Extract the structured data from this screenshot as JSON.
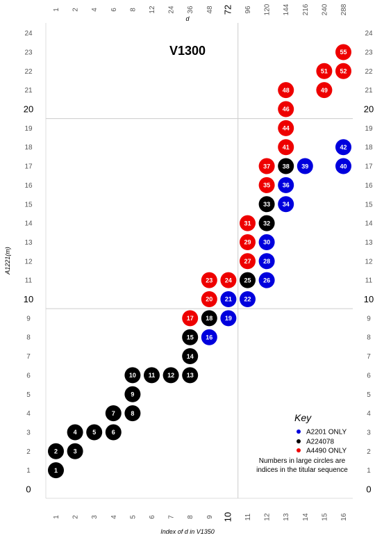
{
  "chart_data": {
    "type": "scatter",
    "title": "V1300",
    "xlabel": "Index of  d  in V1350",
    "ylabel": "A1221(m)",
    "top_axis_label": "d",
    "xlim": [
      0.5,
      16.5
    ],
    "ylim": [
      -0.5,
      24.5
    ],
    "grid": true,
    "x_ticks": [
      "1",
      "2",
      "3",
      "4",
      "5",
      "6",
      "7",
      "8",
      "9",
      "10",
      "11",
      "12",
      "13",
      "14",
      "15",
      "16"
    ],
    "top_ticks": [
      "1",
      "2",
      "4",
      "6",
      "8",
      "12",
      "24",
      "36",
      "48",
      "72",
      "96",
      "120",
      "144",
      "216",
      "240",
      "288"
    ],
    "y_ticks": [
      "0",
      "1",
      "2",
      "3",
      "4",
      "5",
      "6",
      "7",
      "8",
      "9",
      "10",
      "11",
      "12",
      "13",
      "14",
      "15",
      "16",
      "17",
      "18",
      "19",
      "20",
      "21",
      "22",
      "23",
      "24"
    ],
    "major_x_ticks": [
      "10"
    ],
    "major_top_ticks": [
      "72"
    ],
    "major_y_ticks": [
      "0",
      "10",
      "20"
    ],
    "gridlines": {
      "x": [
        10
      ],
      "y": [
        10,
        20
      ]
    },
    "colors": {
      "A2201 ONLY": "#0000dd",
      "A224078": "#000000",
      "A4490 ONLY": "#ee0000"
    },
    "points": [
      {
        "n": 1,
        "x": 1,
        "y": 1,
        "series": "A224078"
      },
      {
        "n": 2,
        "x": 1,
        "y": 2,
        "series": "A224078"
      },
      {
        "n": 3,
        "x": 2,
        "y": 2,
        "series": "A224078"
      },
      {
        "n": 4,
        "x": 2,
        "y": 3,
        "series": "A224078"
      },
      {
        "n": 5,
        "x": 3,
        "y": 3,
        "series": "A224078"
      },
      {
        "n": 6,
        "x": 4,
        "y": 3,
        "series": "A224078"
      },
      {
        "n": 7,
        "x": 4,
        "y": 4,
        "series": "A224078"
      },
      {
        "n": 8,
        "x": 5,
        "y": 4,
        "series": "A224078"
      },
      {
        "n": 9,
        "x": 5,
        "y": 5,
        "series": "A224078"
      },
      {
        "n": 10,
        "x": 5,
        "y": 6,
        "series": "A224078"
      },
      {
        "n": 11,
        "x": 6,
        "y": 6,
        "series": "A224078"
      },
      {
        "n": 12,
        "x": 7,
        "y": 6,
        "series": "A224078"
      },
      {
        "n": 13,
        "x": 8,
        "y": 6,
        "series": "A224078"
      },
      {
        "n": 14,
        "x": 8,
        "y": 7,
        "series": "A224078"
      },
      {
        "n": 15,
        "x": 8,
        "y": 8,
        "series": "A224078"
      },
      {
        "n": 16,
        "x": 9,
        "y": 8,
        "series": "A2201 ONLY"
      },
      {
        "n": 17,
        "x": 8,
        "y": 9,
        "series": "A4490 ONLY"
      },
      {
        "n": 18,
        "x": 9,
        "y": 9,
        "series": "A224078"
      },
      {
        "n": 19,
        "x": 10,
        "y": 9,
        "series": "A2201 ONLY"
      },
      {
        "n": 20,
        "x": 9,
        "y": 10,
        "series": "A4490 ONLY"
      },
      {
        "n": 21,
        "x": 10,
        "y": 10,
        "series": "A2201 ONLY"
      },
      {
        "n": 22,
        "x": 11,
        "y": 10,
        "series": "A2201 ONLY"
      },
      {
        "n": 23,
        "x": 9,
        "y": 11,
        "series": "A4490 ONLY"
      },
      {
        "n": 24,
        "x": 10,
        "y": 11,
        "series": "A4490 ONLY"
      },
      {
        "n": 25,
        "x": 11,
        "y": 11,
        "series": "A224078"
      },
      {
        "n": 26,
        "x": 12,
        "y": 11,
        "series": "A2201 ONLY"
      },
      {
        "n": 27,
        "x": 11,
        "y": 12,
        "series": "A4490 ONLY"
      },
      {
        "n": 28,
        "x": 12,
        "y": 12,
        "series": "A2201 ONLY"
      },
      {
        "n": 29,
        "x": 11,
        "y": 13,
        "series": "A4490 ONLY"
      },
      {
        "n": 30,
        "x": 12,
        "y": 13,
        "series": "A2201 ONLY"
      },
      {
        "n": 31,
        "x": 11,
        "y": 14,
        "series": "A4490 ONLY"
      },
      {
        "n": 32,
        "x": 12,
        "y": 14,
        "series": "A224078"
      },
      {
        "n": 33,
        "x": 12,
        "y": 15,
        "series": "A224078"
      },
      {
        "n": 34,
        "x": 13,
        "y": 15,
        "series": "A2201 ONLY"
      },
      {
        "n": 35,
        "x": 12,
        "y": 16,
        "series": "A4490 ONLY"
      },
      {
        "n": 36,
        "x": 13,
        "y": 16,
        "series": "A2201 ONLY"
      },
      {
        "n": 37,
        "x": 12,
        "y": 17,
        "series": "A4490 ONLY"
      },
      {
        "n": 38,
        "x": 13,
        "y": 17,
        "series": "A224078"
      },
      {
        "n": 39,
        "x": 14,
        "y": 17,
        "series": "A2201 ONLY"
      },
      {
        "n": 40,
        "x": 16,
        "y": 17,
        "series": "A2201 ONLY"
      },
      {
        "n": 41,
        "x": 13,
        "y": 18,
        "series": "A4490 ONLY"
      },
      {
        "n": 42,
        "x": 16,
        "y": 18,
        "series": "A2201 ONLY"
      },
      {
        "n": 44,
        "x": 13,
        "y": 19,
        "series": "A4490 ONLY"
      },
      {
        "n": 46,
        "x": 13,
        "y": 20,
        "series": "A4490 ONLY"
      },
      {
        "n": 48,
        "x": 13,
        "y": 21,
        "series": "A4490 ONLY"
      },
      {
        "n": 49,
        "x": 15,
        "y": 21,
        "series": "A4490 ONLY"
      },
      {
        "n": 51,
        "x": 15,
        "y": 22,
        "series": "A4490 ONLY"
      },
      {
        "n": 52,
        "x": 16,
        "y": 22,
        "series": "A4490 ONLY"
      },
      {
        "n": 55,
        "x": 16,
        "y": 23,
        "series": "A4490 ONLY"
      }
    ],
    "legend": {
      "title": "Key",
      "placement": "bottom-right",
      "entries": [
        "A2201 ONLY",
        "A224078",
        "A4490 ONLY"
      ],
      "note_line1": "Numbers in large circles are",
      "note_line2": "indices in the titular sequence"
    }
  }
}
